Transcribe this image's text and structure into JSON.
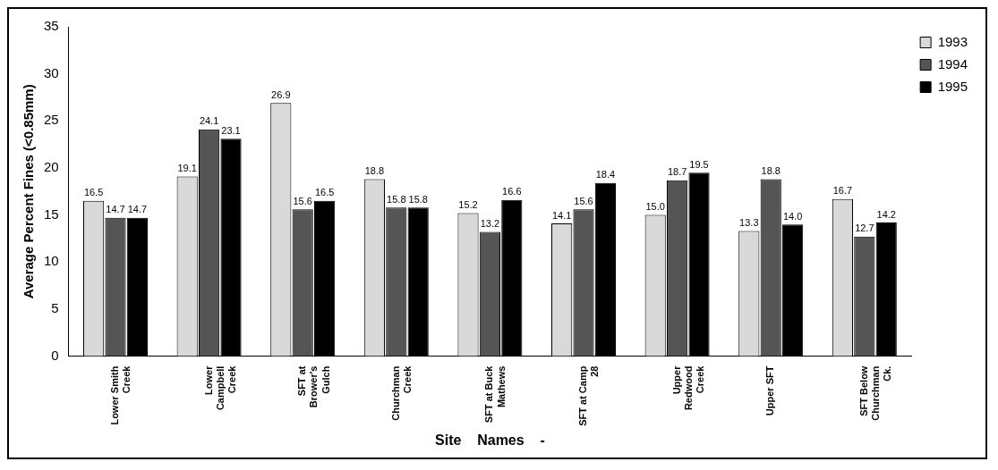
{
  "chart_data": {
    "type": "bar",
    "ylabel": "Average Percent Fines (<0.85mm)",
    "xlabel": "Site    Names    -",
    "categories": [
      "Lower Smith Creek",
      "Lower Campbell Creek",
      "SFT at Brower's Gulch",
      "Churchman Creek",
      "SFT at Buck Mathews",
      "SFT at Camp 28",
      "Upper Redwood Creek",
      "Upper SFT",
      "SFT Below Churchman Ck."
    ],
    "series": [
      {
        "name": "1993",
        "color": "#d9d9d9",
        "values": [
          16.5,
          19.1,
          26.9,
          18.8,
          15.2,
          14.1,
          15.0,
          13.3,
          16.7
        ],
        "value_labels": [
          "16.5",
          "19.1",
          "26.9",
          "18.8",
          "15.2",
          "14.1",
          "15.0",
          "13.3",
          "16.7"
        ]
      },
      {
        "name": "1994",
        "color": "#555555",
        "values": [
          14.7,
          24.1,
          15.6,
          15.8,
          13.2,
          15.6,
          18.7,
          18.8,
          12.7
        ],
        "value_labels": [
          "14.7",
          "24.1",
          "15.6",
          "15.8",
          "13.2",
          "15.6",
          "18.7",
          "18.8",
          "12.7"
        ]
      },
      {
        "name": "1995",
        "color": "#000000",
        "values": [
          14.7,
          23.1,
          16.5,
          15.8,
          16.6,
          18.4,
          19.5,
          14.0,
          14.2
        ],
        "value_labels": [
          "14.7",
          "23.1",
          "16.5",
          "15.8",
          "16.6",
          "18.4",
          "19.5",
          "14.0",
          "14.2"
        ]
      }
    ],
    "ylim": [
      0,
      35
    ],
    "yticks": [
      0,
      5,
      10,
      15,
      20,
      25,
      30,
      35
    ],
    "grid": false,
    "legend": "top right"
  }
}
